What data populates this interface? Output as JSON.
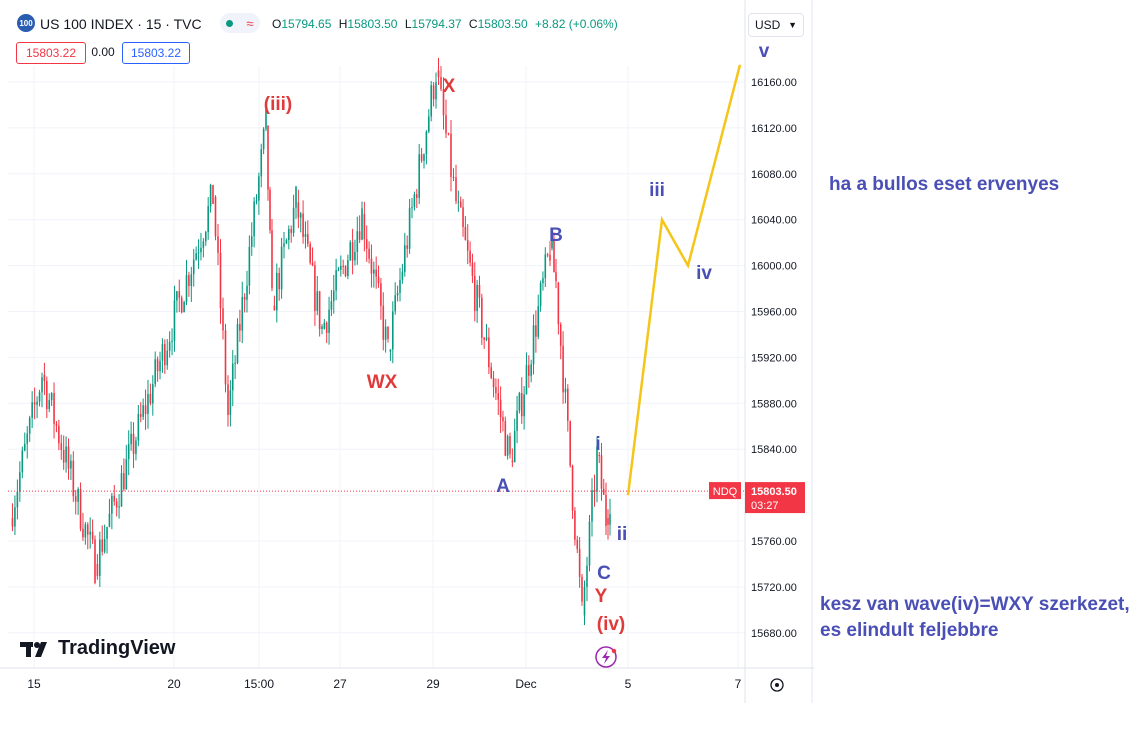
{
  "header": {
    "symbol_badge": "100",
    "title": "US 100 INDEX · 15 · TVC",
    "status_icon": "live-dot-icon",
    "wave_icon": "≈",
    "ohlc": {
      "o_label": "O",
      "o_value": "15794.65",
      "h_label": "H",
      "h_value": "15803.50",
      "l_label": "L",
      "l_value": "15794.37",
      "c_label": "C",
      "c_value": "15803.50",
      "change": "+8.82 (+0.06%)"
    },
    "bid": "15803.22",
    "spread": "0.00",
    "ask": "15803.22",
    "currency": "USD"
  },
  "price_axis": {
    "ticks": [
      "16160.00",
      "16120.00",
      "16080.00",
      "16040.00",
      "16000.00",
      "15960.00",
      "15920.00",
      "15880.00",
      "15840.00",
      "15760.00",
      "15720.00",
      "15680.00"
    ],
    "last_price": "15803.50",
    "countdown": "03:27",
    "ticker_tag": "NDQ"
  },
  "time_axis": {
    "ticks": [
      "15",
      "20",
      "15:00",
      "27",
      "29",
      "Dec",
      "5",
      "7"
    ]
  },
  "wave_labels": {
    "red": [
      "(iii)",
      "X",
      "WX",
      "Y",
      "(iv)"
    ],
    "blue": [
      "B",
      "A",
      "i",
      "ii",
      "C",
      "iii",
      "iv",
      "v"
    ]
  },
  "logo_text": "TradingView",
  "notes": {
    "bull_case": "ha a bullos eset ervenyes",
    "structure": "kesz van wave(iv)=WXY szerkezet, es elindult feljebbre"
  },
  "colors": {
    "up": "#089981",
    "down": "#f23645",
    "projection": "#f5c518",
    "label_red": "#e03a3a",
    "label_blue": "#4a4fb5",
    "grid": "#f0f3fa"
  },
  "chart_data": {
    "type": "candlestick",
    "symbol": "US 100 INDEX",
    "interval": "15",
    "ylim": [
      15660,
      16180
    ],
    "last": 15803.5,
    "swing_path": [
      {
        "label": "start",
        "value": 15780
      },
      {
        "label": "",
        "value": 15905
      },
      {
        "label": "",
        "value": 15740
      },
      {
        "label": "",
        "value": 16060
      },
      {
        "label": "",
        "value": 15870
      },
      {
        "label": "(iii)",
        "value": 16122
      },
      {
        "label": "",
        "value": 15965
      },
      {
        "label": "",
        "value": 16055
      },
      {
        "label": "",
        "value": 15945
      },
      {
        "label": "",
        "value": 16045
      },
      {
        "label": "WX",
        "value": 15925
      },
      {
        "label": "X",
        "value": 16170
      },
      {
        "label": "",
        "value": 16055
      },
      {
        "label": "A",
        "value": 15830
      },
      {
        "label": "B",
        "value": 16015
      },
      {
        "label": "",
        "value": 15985
      },
      {
        "label": "C / Y / (iv)",
        "value": 15695
      },
      {
        "label": "i",
        "value": 15835
      },
      {
        "label": "ii",
        "value": 15780
      },
      {
        "label": "",
        "value": 15800
      }
    ],
    "projection": [
      {
        "label": "start",
        "value": 15800
      },
      {
        "label": "iii",
        "value": 16040
      },
      {
        "label": "iv",
        "value": 16000
      },
      {
        "label": "v",
        "value": 16175
      }
    ]
  }
}
